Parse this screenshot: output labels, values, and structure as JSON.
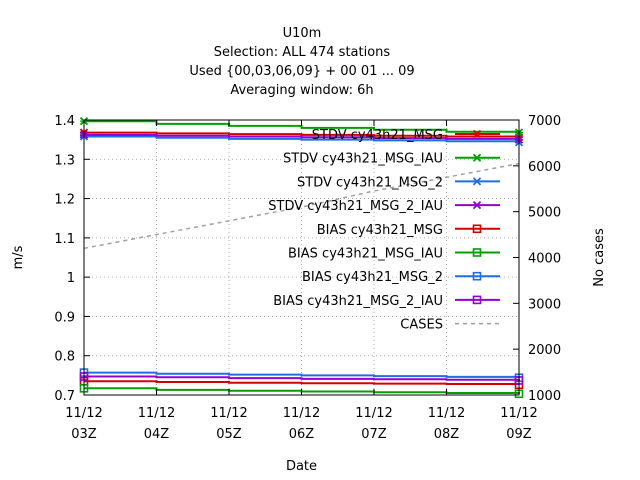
{
  "chart_data": {
    "type": "line",
    "title_lines": [
      "U10m",
      "Selection: ALL     474 stations",
      "Used {00,03,06,09} + 00 01 ... 09",
      "Averaging window:  6h"
    ],
    "xlabel": "Date",
    "ylabel": "m/s",
    "y2label": "No cases",
    "categories": [
      [
        "11/12",
        "03Z"
      ],
      [
        "11/12",
        "04Z"
      ],
      [
        "11/12",
        "05Z"
      ],
      [
        "11/12",
        "06Z"
      ],
      [
        "11/12",
        "07Z"
      ],
      [
        "11/12",
        "08Z"
      ],
      [
        "11/12",
        "09Z"
      ]
    ],
    "x": [
      3,
      4,
      5,
      6,
      7,
      8,
      9
    ],
    "xlim": [
      3,
      9
    ],
    "ylim": [
      0.7,
      1.4
    ],
    "yticks": [
      "0.7",
      "0.8",
      "0.9",
      "1",
      "1.1",
      "1.2",
      "1.3",
      "1.4"
    ],
    "y2lim": [
      1000,
      7000
    ],
    "y2ticks": [
      "1000",
      "2000",
      "3000",
      "4000",
      "5000",
      "6000",
      "7000"
    ],
    "grid": true,
    "legend_position": "top-right",
    "series": [
      {
        "name": "STDV cy43h21_MSG",
        "color": "#d40000",
        "marker": "x",
        "axis": "y",
        "values": [
          1.368,
          1.366,
          1.364,
          1.362,
          1.36,
          1.358,
          1.356
        ]
      },
      {
        "name": "STDV cy43h21_MSG_IAU",
        "color": "#00a000",
        "marker": "x",
        "axis": "y",
        "values": [
          1.397,
          1.39,
          1.385,
          1.38,
          1.375,
          1.37,
          1.368
        ]
      },
      {
        "name": "STDV cy43h21_MSG_2",
        "color": "#1e6ee6",
        "marker": "x",
        "axis": "y",
        "values": [
          1.358,
          1.355,
          1.352,
          1.35,
          1.348,
          1.346,
          1.343
        ]
      },
      {
        "name": "STDV cy43h21_MSG_2_IAU",
        "color": "#9400d3",
        "marker": "x",
        "axis": "y",
        "values": [
          1.362,
          1.36,
          1.358,
          1.356,
          1.354,
          1.352,
          1.35
        ]
      },
      {
        "name": "BIAS cy43h21_MSG",
        "color": "#d40000",
        "marker": "square",
        "axis": "y",
        "values": [
          0.735,
          0.733,
          0.731,
          0.73,
          0.729,
          0.728,
          0.726
        ]
      },
      {
        "name": "BIAS cy43h21_MSG_IAU",
        "color": "#00a000",
        "marker": "square",
        "axis": "y",
        "values": [
          0.717,
          0.713,
          0.711,
          0.709,
          0.707,
          0.705,
          0.703
        ]
      },
      {
        "name": "BIAS cy43h21_MSG_2",
        "color": "#1e6ee6",
        "marker": "square",
        "axis": "y",
        "values": [
          0.757,
          0.754,
          0.752,
          0.75,
          0.748,
          0.746,
          0.744
        ]
      },
      {
        "name": "BIAS cy43h21_MSG_2_IAU",
        "color": "#9400d3",
        "marker": "square",
        "axis": "y",
        "values": [
          0.747,
          0.745,
          0.743,
          0.741,
          0.74,
          0.739,
          0.737
        ]
      },
      {
        "name": "CASES",
        "color": "#a0a0a0",
        "marker": "none",
        "dashed": true,
        "axis": "y2",
        "values": [
          4200,
          4500,
          4800,
          5100,
          5450,
          5750,
          6050
        ]
      }
    ]
  }
}
